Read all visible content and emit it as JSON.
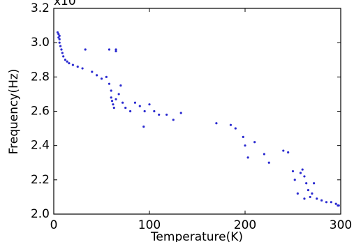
{
  "chart_data": {
    "type": "scatter",
    "x_label": "Temperature(K)",
    "y_label": "Frequency(Hz)",
    "y_multiplier": "x10",
    "xlim": [
      0,
      300
    ],
    "xticks": [
      0,
      100,
      200,
      300
    ],
    "ylim": [
      2.0,
      3.2
    ],
    "yticks": [
      {
        "value": 2.0,
        "label": "2.0"
      },
      2.2,
      2.4,
      2.6,
      2.8,
      {
        "value": 3.0,
        "label": "3.0"
      },
      3.2
    ],
    "series": [
      {
        "color": "#2a2ad0",
        "x": [
          4,
          5,
          6,
          5,
          6,
          6,
          7,
          8,
          9,
          10,
          12,
          14,
          16,
          20,
          25,
          30,
          33,
          58,
          65,
          65,
          40,
          45,
          50,
          55,
          58,
          60,
          60,
          61,
          62,
          63,
          65,
          68,
          70,
          72,
          75,
          80,
          85,
          90,
          95,
          94,
          100,
          105,
          110,
          118,
          125,
          133,
          170,
          185,
          190,
          198,
          200,
          203,
          210,
          220,
          225,
          240,
          245,
          250,
          252,
          255,
          258,
          260,
          262,
          264,
          266,
          268,
          270,
          262,
          272,
          275,
          280,
          285,
          290,
          295,
          297,
          298
        ],
        "values": [
          3.06,
          3.05,
          3.04,
          3.03,
          3.02,
          3.0,
          2.98,
          2.96,
          2.94,
          2.92,
          2.9,
          2.89,
          2.88,
          2.87,
          2.86,
          2.85,
          2.96,
          2.96,
          2.96,
          2.95,
          2.83,
          2.81,
          2.79,
          2.8,
          2.76,
          2.72,
          2.68,
          2.66,
          2.64,
          2.62,
          2.67,
          2.7,
          2.75,
          2.65,
          2.62,
          2.6,
          2.65,
          2.63,
          2.6,
          2.51,
          2.64,
          2.6,
          2.58,
          2.58,
          2.55,
          2.59,
          2.53,
          2.52,
          2.5,
          2.45,
          2.4,
          2.33,
          2.42,
          2.35,
          2.3,
          2.37,
          2.36,
          2.25,
          2.2,
          2.12,
          2.24,
          2.26,
          2.22,
          2.18,
          2.14,
          2.1,
          2.12,
          2.09,
          2.18,
          2.09,
          2.08,
          2.07,
          2.07,
          2.06,
          2.05,
          2.05
        ]
      }
    ]
  }
}
